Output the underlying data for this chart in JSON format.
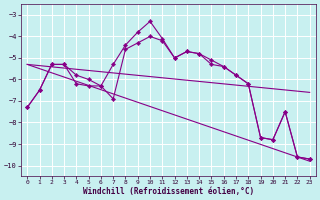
{
  "xlabel": "Windchill (Refroidissement éolien,°C)",
  "bg_color": "#c8f0f0",
  "line_color": "#880088",
  "grid_color": "#ffffff",
  "xlim": [
    -0.5,
    23.5
  ],
  "ylim": [
    -10.5,
    -2.5
  ],
  "yticks": [
    -10,
    -9,
    -8,
    -7,
    -6,
    -5,
    -4,
    -3
  ],
  "xticks": [
    0,
    1,
    2,
    3,
    4,
    5,
    6,
    7,
    8,
    9,
    10,
    11,
    12,
    13,
    14,
    15,
    16,
    17,
    18,
    19,
    20,
    21,
    22,
    23
  ],
  "series": [
    {
      "x": [
        0,
        1,
        2,
        3,
        4,
        5,
        6,
        7,
        8,
        9,
        10,
        11,
        12,
        13,
        14,
        15,
        16,
        17,
        18,
        19,
        20,
        21,
        22,
        23
      ],
      "y": [
        -7.3,
        -6.5,
        -5.3,
        -5.3,
        -6.2,
        -6.3,
        -6.3,
        -6.9,
        -4.6,
        -4.3,
        -4.0,
        -4.2,
        -5.0,
        -4.7,
        -4.8,
        -5.3,
        -5.4,
        -5.8,
        -6.2,
        -8.7,
        -8.8,
        -7.5,
        -9.6,
        -9.7
      ],
      "marker": true
    },
    {
      "x": [
        0,
        1,
        2,
        3,
        4,
        5,
        6,
        7,
        8,
        9,
        10,
        11,
        12,
        13,
        14,
        15,
        16,
        17,
        18,
        19,
        20,
        21,
        22,
        23
      ],
      "y": [
        -7.3,
        -6.5,
        -5.3,
        -5.3,
        -5.8,
        -6.0,
        -6.3,
        -5.3,
        -4.4,
        -3.8,
        -3.3,
        -4.1,
        -5.0,
        -4.7,
        -4.8,
        -5.1,
        -5.4,
        -5.8,
        -6.2,
        -8.7,
        -8.8,
        -7.5,
        -9.6,
        -9.7
      ],
      "marker": true
    },
    {
      "x": [
        0,
        23
      ],
      "y": [
        -5.3,
        -6.6
      ],
      "marker": false
    },
    {
      "x": [
        0,
        23
      ],
      "y": [
        -5.3,
        -9.8
      ],
      "marker": false
    }
  ]
}
